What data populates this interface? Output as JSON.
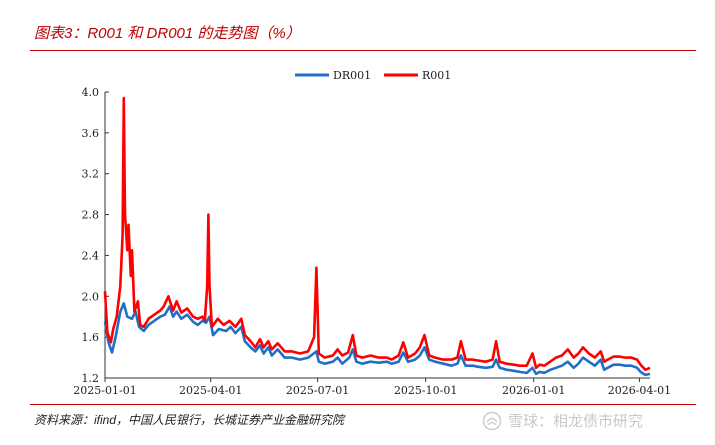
{
  "figure": {
    "title": "图表3：R001 和 DR001 的走势图（%）",
    "source": "资料来源：ifind，中国人民银行，长城证券产业金融研究院",
    "watermark": "雪球：相龙债市研究",
    "watermark_icon": "xueqiu-logo-icon"
  },
  "colors": {
    "DR001": "#1f6fc8",
    "R001": "#ff0000",
    "accent": "#c00000"
  },
  "chart_data": {
    "type": "line",
    "title": "",
    "xlabel": "",
    "ylabel": "",
    "ylim": [
      1.2,
      4.0
    ],
    "xlim": [
      "2025-01-01",
      "2026-04-10"
    ],
    "yticks": [
      "4.0",
      "3.6",
      "3.2",
      "2.8",
      "2.4",
      "2.0",
      "1.6",
      "1.2"
    ],
    "xticks": [
      "2025-01-01",
      "2025-04-01",
      "2025-07-01",
      "2025-10-01",
      "2026-01-01",
      "2026-04-01"
    ],
    "grid": false,
    "legend": "top-center",
    "series": [
      {
        "name": "DR001",
        "points": [
          [
            "2025-01-01",
            1.75
          ],
          [
            "2025-01-04",
            1.55
          ],
          [
            "2025-01-07",
            1.45
          ],
          [
            "2025-01-10",
            1.6
          ],
          [
            "2025-01-14",
            1.85
          ],
          [
            "2025-01-17",
            1.93
          ],
          [
            "2025-01-20",
            1.8
          ],
          [
            "2025-01-24",
            1.78
          ],
          [
            "2025-01-27",
            1.85
          ],
          [
            "2025-01-30",
            1.7
          ],
          [
            "2025-02-03",
            1.66
          ],
          [
            "2025-02-07",
            1.72
          ],
          [
            "2025-02-12",
            1.76
          ],
          [
            "2025-02-17",
            1.8
          ],
          [
            "2025-02-21",
            1.82
          ],
          [
            "2025-02-25",
            1.9
          ],
          [
            "2025-02-28",
            1.8
          ],
          [
            "2025-03-03",
            1.85
          ],
          [
            "2025-03-07",
            1.78
          ],
          [
            "2025-03-12",
            1.82
          ],
          [
            "2025-03-17",
            1.75
          ],
          [
            "2025-03-21",
            1.72
          ],
          [
            "2025-03-25",
            1.76
          ],
          [
            "2025-03-28",
            1.74
          ],
          [
            "2025-03-31",
            1.8
          ],
          [
            "2025-04-03",
            1.62
          ],
          [
            "2025-04-08",
            1.68
          ],
          [
            "2025-04-14",
            1.66
          ],
          [
            "2025-04-18",
            1.7
          ],
          [
            "2025-04-22",
            1.64
          ],
          [
            "2025-04-27",
            1.7
          ],
          [
            "2025-04-30",
            1.56
          ],
          [
            "2025-05-05",
            1.5
          ],
          [
            "2025-05-09",
            1.46
          ],
          [
            "2025-05-13",
            1.52
          ],
          [
            "2025-05-16",
            1.44
          ],
          [
            "2025-05-20",
            1.5
          ],
          [
            "2025-05-23",
            1.42
          ],
          [
            "2025-05-28",
            1.48
          ],
          [
            "2025-06-03",
            1.4
          ],
          [
            "2025-06-09",
            1.4
          ],
          [
            "2025-06-16",
            1.38
          ],
          [
            "2025-06-23",
            1.4
          ],
          [
            "2025-06-30",
            1.46
          ],
          [
            "2025-07-02",
            1.36
          ],
          [
            "2025-07-07",
            1.34
          ],
          [
            "2025-07-14",
            1.36
          ],
          [
            "2025-07-18",
            1.4
          ],
          [
            "2025-07-22",
            1.34
          ],
          [
            "2025-07-28",
            1.4
          ],
          [
            "2025-07-31",
            1.48
          ],
          [
            "2025-08-03",
            1.36
          ],
          [
            "2025-08-08",
            1.34
          ],
          [
            "2025-08-15",
            1.36
          ],
          [
            "2025-08-22",
            1.35
          ],
          [
            "2025-08-29",
            1.36
          ],
          [
            "2025-09-02",
            1.34
          ],
          [
            "2025-09-08",
            1.36
          ],
          [
            "2025-09-12",
            1.45
          ],
          [
            "2025-09-16",
            1.36
          ],
          [
            "2025-09-22",
            1.38
          ],
          [
            "2025-09-26",
            1.42
          ],
          [
            "2025-09-30",
            1.5
          ],
          [
            "2025-10-04",
            1.38
          ],
          [
            "2025-10-09",
            1.36
          ],
          [
            "2025-10-16",
            1.34
          ],
          [
            "2025-10-23",
            1.32
          ],
          [
            "2025-10-28",
            1.34
          ],
          [
            "2025-10-31",
            1.42
          ],
          [
            "2025-11-04",
            1.32
          ],
          [
            "2025-11-10",
            1.32
          ],
          [
            "2025-11-15",
            1.31
          ],
          [
            "2025-11-21",
            1.3
          ],
          [
            "2025-11-27",
            1.31
          ],
          [
            "2025-11-30",
            1.38
          ],
          [
            "2025-12-03",
            1.3
          ],
          [
            "2025-12-09",
            1.28
          ],
          [
            "2025-12-15",
            1.27
          ],
          [
            "2025-12-20",
            1.26
          ],
          [
            "2025-12-26",
            1.25
          ],
          [
            "2025-12-31",
            1.3
          ],
          [
            "2026-01-03",
            1.24
          ],
          [
            "2026-01-06",
            1.26
          ],
          [
            "2026-01-10",
            1.25
          ],
          [
            "2026-01-15",
            1.28
          ],
          [
            "2026-01-20",
            1.3
          ],
          [
            "2026-01-25",
            1.32
          ],
          [
            "2026-01-30",
            1.36
          ],
          [
            "2026-02-04",
            1.3
          ],
          [
            "2026-02-08",
            1.34
          ],
          [
            "2026-02-12",
            1.4
          ],
          [
            "2026-02-17",
            1.36
          ],
          [
            "2026-02-22",
            1.32
          ],
          [
            "2026-02-27",
            1.38
          ],
          [
            "2026-03-02",
            1.28
          ],
          [
            "2026-03-05",
            1.3
          ],
          [
            "2026-03-10",
            1.33
          ],
          [
            "2026-03-15",
            1.33
          ],
          [
            "2026-03-20",
            1.32
          ],
          [
            "2026-03-25",
            1.32
          ],
          [
            "2026-03-30",
            1.3
          ],
          [
            "2026-04-02",
            1.26
          ],
          [
            "2026-04-06",
            1.23
          ],
          [
            "2026-04-10",
            1.24
          ]
        ]
      },
      {
        "name": "R001",
        "points": [
          [
            "2025-01-01",
            2.05
          ],
          [
            "2025-01-03",
            1.65
          ],
          [
            "2025-01-06",
            1.55
          ],
          [
            "2025-01-08",
            1.68
          ],
          [
            "2025-01-11",
            1.8
          ],
          [
            "2025-01-14",
            2.1
          ],
          [
            "2025-01-16",
            2.6
          ],
          [
            "2025-01-17",
            3.94
          ],
          [
            "2025-01-18",
            2.8
          ],
          [
            "2025-01-20",
            2.45
          ],
          [
            "2025-01-21",
            2.7
          ],
          [
            "2025-01-23",
            2.2
          ],
          [
            "2025-01-24",
            2.45
          ],
          [
            "2025-01-26",
            1.85
          ],
          [
            "2025-01-29",
            1.95
          ],
          [
            "2025-01-31",
            1.72
          ],
          [
            "2025-02-03",
            1.7
          ],
          [
            "2025-02-07",
            1.78
          ],
          [
            "2025-02-12",
            1.82
          ],
          [
            "2025-02-17",
            1.86
          ],
          [
            "2025-02-20",
            1.9
          ],
          [
            "2025-02-24",
            2.0
          ],
          [
            "2025-02-28",
            1.86
          ],
          [
            "2025-03-03",
            1.95
          ],
          [
            "2025-03-07",
            1.84
          ],
          [
            "2025-03-12",
            1.88
          ],
          [
            "2025-03-17",
            1.8
          ],
          [
            "2025-03-21",
            1.78
          ],
          [
            "2025-03-25",
            1.8
          ],
          [
            "2025-03-27",
            1.76
          ],
          [
            "2025-03-29",
            2.1
          ],
          [
            "2025-03-30",
            2.8
          ],
          [
            "2025-03-31",
            2.1
          ],
          [
            "2025-04-02",
            1.7
          ],
          [
            "2025-04-07",
            1.78
          ],
          [
            "2025-04-12",
            1.72
          ],
          [
            "2025-04-17",
            1.76
          ],
          [
            "2025-04-22",
            1.7
          ],
          [
            "2025-04-27",
            1.78
          ],
          [
            "2025-04-30",
            1.62
          ],
          [
            "2025-05-05",
            1.56
          ],
          [
            "2025-05-09",
            1.5
          ],
          [
            "2025-05-13",
            1.58
          ],
          [
            "2025-05-16",
            1.5
          ],
          [
            "2025-05-20",
            1.56
          ],
          [
            "2025-05-23",
            1.48
          ],
          [
            "2025-05-28",
            1.54
          ],
          [
            "2025-06-03",
            1.46
          ],
          [
            "2025-06-09",
            1.46
          ],
          [
            "2025-06-16",
            1.44
          ],
          [
            "2025-06-23",
            1.46
          ],
          [
            "2025-06-28",
            1.6
          ],
          [
            "2025-06-30",
            2.28
          ],
          [
            "2025-07-02",
            1.44
          ],
          [
            "2025-07-07",
            1.4
          ],
          [
            "2025-07-14",
            1.42
          ],
          [
            "2025-07-18",
            1.48
          ],
          [
            "2025-07-22",
            1.42
          ],
          [
            "2025-07-27",
            1.45
          ],
          [
            "2025-07-31",
            1.62
          ],
          [
            "2025-08-03",
            1.42
          ],
          [
            "2025-08-08",
            1.4
          ],
          [
            "2025-08-15",
            1.42
          ],
          [
            "2025-08-22",
            1.4
          ],
          [
            "2025-08-29",
            1.4
          ],
          [
            "2025-09-02",
            1.38
          ],
          [
            "2025-09-08",
            1.42
          ],
          [
            "2025-09-12",
            1.55
          ],
          [
            "2025-09-16",
            1.4
          ],
          [
            "2025-09-22",
            1.44
          ],
          [
            "2025-09-26",
            1.5
          ],
          [
            "2025-09-30",
            1.62
          ],
          [
            "2025-10-04",
            1.42
          ],
          [
            "2025-10-09",
            1.4
          ],
          [
            "2025-10-16",
            1.38
          ],
          [
            "2025-10-23",
            1.38
          ],
          [
            "2025-10-28",
            1.4
          ],
          [
            "2025-10-31",
            1.56
          ],
          [
            "2025-11-04",
            1.38
          ],
          [
            "2025-11-10",
            1.38
          ],
          [
            "2025-11-15",
            1.37
          ],
          [
            "2025-11-21",
            1.36
          ],
          [
            "2025-11-27",
            1.38
          ],
          [
            "2025-11-30",
            1.56
          ],
          [
            "2025-12-03",
            1.36
          ],
          [
            "2025-12-09",
            1.34
          ],
          [
            "2025-12-15",
            1.33
          ],
          [
            "2025-12-20",
            1.32
          ],
          [
            "2025-12-26",
            1.32
          ],
          [
            "2025-12-31",
            1.44
          ],
          [
            "2026-01-03",
            1.3
          ],
          [
            "2026-01-06",
            1.33
          ],
          [
            "2026-01-10",
            1.32
          ],
          [
            "2026-01-15",
            1.36
          ],
          [
            "2026-01-20",
            1.4
          ],
          [
            "2026-01-25",
            1.42
          ],
          [
            "2026-01-30",
            1.48
          ],
          [
            "2026-02-04",
            1.4
          ],
          [
            "2026-02-08",
            1.44
          ],
          [
            "2026-02-12",
            1.5
          ],
          [
            "2026-02-17",
            1.44
          ],
          [
            "2026-02-22",
            1.4
          ],
          [
            "2026-02-27",
            1.46
          ],
          [
            "2026-03-02",
            1.36
          ],
          [
            "2026-03-05",
            1.38
          ],
          [
            "2026-03-10",
            1.41
          ],
          [
            "2026-03-15",
            1.41
          ],
          [
            "2026-03-20",
            1.4
          ],
          [
            "2026-03-25",
            1.4
          ],
          [
            "2026-03-30",
            1.38
          ],
          [
            "2026-04-02",
            1.33
          ],
          [
            "2026-04-06",
            1.28
          ],
          [
            "2026-04-10",
            1.3
          ]
        ]
      }
    ]
  }
}
